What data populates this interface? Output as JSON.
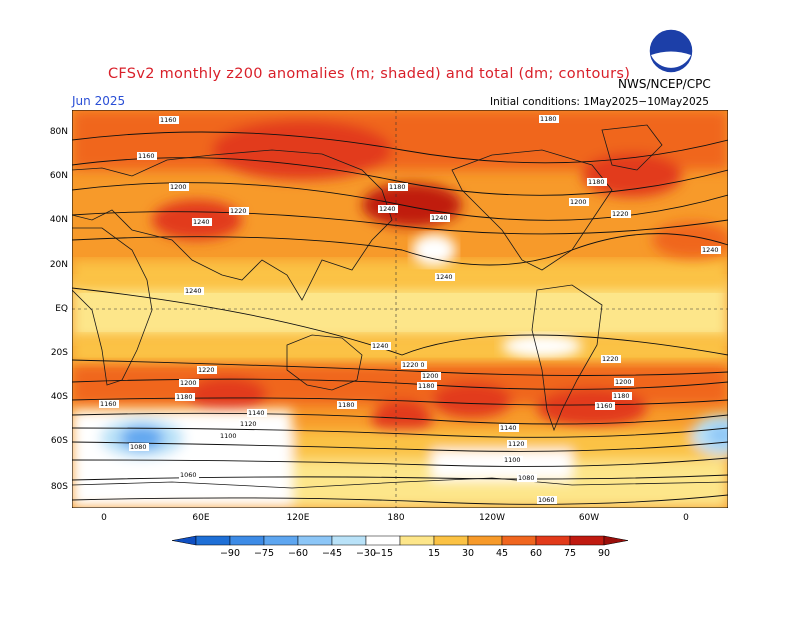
{
  "title": "CFSv2 monthly z200 anomalies (m; shaded) and total (dm; contours)",
  "month": "Jun 2025",
  "agency": "NWS/NCEP/CPC",
  "initial_conditions": "Initial conditions: 1May2025−10May2025",
  "logo_text": "NOAA",
  "lat_labels": [
    "80N",
    "60N",
    "40N",
    "20N",
    "EQ",
    "20S",
    "40S",
    "60S",
    "80S"
  ],
  "lon_labels": [
    "0",
    "60E",
    "120E",
    "180",
    "120W",
    "60W",
    "0"
  ],
  "colorbar": {
    "labels": [
      "−90",
      "−75",
      "−60",
      "−45",
      "−30",
      "−15",
      "15",
      "30",
      "45",
      "60",
      "75",
      "90"
    ],
    "colors": [
      "#1e6fd6",
      "#3d8be6",
      "#5ea6f0",
      "#8cc6f7",
      "#b9e2f8",
      "#ffffff",
      "#fde68a",
      "#fbc244",
      "#f79a2a",
      "#f0661f",
      "#e23a1a",
      "#c01a10"
    ]
  },
  "contour_labels": [
    "1160",
    "1180",
    "1200",
    "1220",
    "1240",
    "1240",
    "1240",
    "1240",
    "1180",
    "1200",
    "1220",
    "1240",
    "1160",
    "1180",
    "1200",
    "1220",
    "1240",
    "1240",
    "1220",
    "1200",
    "1180",
    "1140",
    "1120",
    "1100",
    "1080",
    "1060",
    "1160",
    "1180",
    "1200",
    "1220",
    "1240",
    "1180",
    "1200",
    "1220",
    "1140",
    "1120",
    "1100",
    "1080",
    "1060",
    "1160",
    "1180",
    "1200",
    "1220"
  ]
}
